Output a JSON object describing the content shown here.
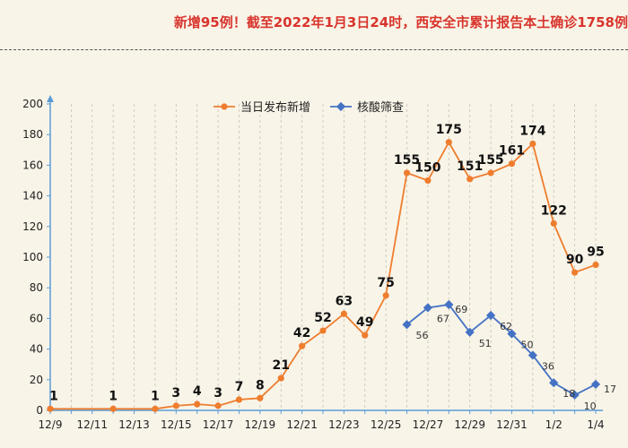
{
  "headline": "新增95例！截至2022年1月3日24时，西安全市累计报告本土确诊1758例",
  "colors": {
    "new_cases": "#ee7d2e",
    "screening": "#4472c4",
    "headline": "#d8352d"
  },
  "chart_data": {
    "type": "line",
    "legend_position": "top",
    "grid": true,
    "ylim": [
      0,
      200
    ],
    "yticks": [
      0,
      20,
      40,
      60,
      80,
      100,
      120,
      140,
      160,
      180,
      200
    ],
    "x_dates": [
      "12/9",
      "12/10",
      "12/11",
      "12/12",
      "12/13",
      "12/14",
      "12/15",
      "12/16",
      "12/17",
      "12/18",
      "12/19",
      "12/20",
      "12/21",
      "12/22",
      "12/23",
      "12/24",
      "12/25",
      "12/26",
      "12/27",
      "12/28",
      "12/29",
      "12/30",
      "12/31",
      "1/1",
      "1/2",
      "1/3",
      "1/4"
    ],
    "xtick_labels": [
      "12/9",
      "12/11",
      "12/13",
      "12/15",
      "12/17",
      "12/19",
      "12/21",
      "12/23",
      "12/25",
      "12/27",
      "12/29",
      "12/31",
      "1/2",
      "1/4"
    ],
    "series": [
      {
        "name": "当日发布新增",
        "color": "#ee7d2e",
        "points": [
          {
            "x": "12/9",
            "y": 1
          },
          {
            "x": "12/12",
            "y": 1
          },
          {
            "x": "12/14",
            "y": 1
          },
          {
            "x": "12/15",
            "y": 3
          },
          {
            "x": "12/16",
            "y": 4
          },
          {
            "x": "12/17",
            "y": 3
          },
          {
            "x": "12/18",
            "y": 7
          },
          {
            "x": "12/19",
            "y": 8
          },
          {
            "x": "12/20",
            "y": 21
          },
          {
            "x": "12/21",
            "y": 42
          },
          {
            "x": "12/22",
            "y": 52
          },
          {
            "x": "12/23",
            "y": 63
          },
          {
            "x": "12/24",
            "y": 49
          },
          {
            "x": "12/25",
            "y": 75
          },
          {
            "x": "12/26",
            "y": 155
          },
          {
            "x": "12/27",
            "y": 150
          },
          {
            "x": "12/28",
            "y": 175
          },
          {
            "x": "12/29",
            "y": 151
          },
          {
            "x": "12/30",
            "y": 155
          },
          {
            "x": "12/31",
            "y": 161
          },
          {
            "x": "1/1",
            "y": 174
          },
          {
            "x": "1/2",
            "y": 122
          },
          {
            "x": "1/3",
            "y": 90
          },
          {
            "x": "1/4",
            "y": 95
          }
        ]
      },
      {
        "name": "核酸筛查",
        "color": "#4472c4",
        "points": [
          {
            "x": "12/26",
            "y": 56
          },
          {
            "x": "12/27",
            "y": 67
          },
          {
            "x": "12/28",
            "y": 69
          },
          {
            "x": "12/29",
            "y": 51
          },
          {
            "x": "12/30",
            "y": 62
          },
          {
            "x": "12/31",
            "y": 50
          },
          {
            "x": "1/1",
            "y": 36
          },
          {
            "x": "1/2",
            "y": 18
          },
          {
            "x": "1/3",
            "y": 10
          },
          {
            "x": "1/4",
            "y": 17
          }
        ]
      }
    ]
  }
}
